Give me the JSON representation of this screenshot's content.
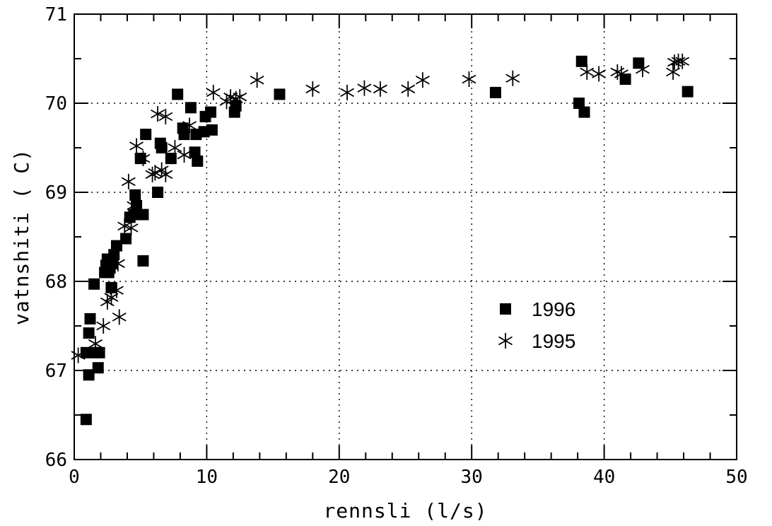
{
  "chart_data": {
    "type": "scatter",
    "title": "",
    "xlabel": "rennsli (l/s)",
    "ylabel": "vatnshiti ( C)",
    "xlim": [
      0,
      50
    ],
    "ylim": [
      66,
      71
    ],
    "x_ticks": [
      0,
      10,
      20,
      30,
      40,
      50
    ],
    "y_ticks": [
      66,
      67,
      68,
      69,
      70,
      71
    ],
    "grid": true,
    "legend_position": "center-right",
    "series": [
      {
        "name": "1996",
        "marker": "square",
        "color": "#000000",
        "points": [
          [
            0.9,
            66.45
          ],
          [
            0.9,
            67.2
          ],
          [
            1.1,
            66.95
          ],
          [
            1.1,
            67.42
          ],
          [
            1.2,
            67.58
          ],
          [
            1.5,
            67.2
          ],
          [
            1.5,
            67.97
          ],
          [
            1.8,
            67.03
          ],
          [
            1.9,
            67.2
          ],
          [
            2.3,
            68.1
          ],
          [
            2.4,
            68.18
          ],
          [
            2.5,
            68.25
          ],
          [
            2.6,
            68.1
          ],
          [
            2.7,
            68.15
          ],
          [
            2.8,
            67.93
          ],
          [
            2.9,
            68.2
          ],
          [
            3.0,
            68.3
          ],
          [
            3.2,
            68.4
          ],
          [
            3.9,
            68.48
          ],
          [
            4.2,
            68.72
          ],
          [
            4.5,
            68.75
          ],
          [
            4.6,
            68.97
          ],
          [
            4.7,
            68.85
          ],
          [
            5.0,
            69.38
          ],
          [
            5.2,
            68.75
          ],
          [
            5.2,
            68.23
          ],
          [
            5.4,
            69.65
          ],
          [
            6.3,
            69.0
          ],
          [
            6.5,
            69.55
          ],
          [
            6.6,
            69.5
          ],
          [
            7.3,
            69.38
          ],
          [
            7.8,
            70.1
          ],
          [
            8.2,
            69.72
          ],
          [
            8.3,
            69.65
          ],
          [
            8.8,
            69.95
          ],
          [
            9.1,
            69.45
          ],
          [
            9.2,
            69.65
          ],
          [
            9.3,
            69.35
          ],
          [
            9.8,
            69.68
          ],
          [
            9.9,
            69.85
          ],
          [
            10.3,
            69.9
          ],
          [
            10.4,
            69.7
          ],
          [
            12.1,
            69.9
          ],
          [
            12.2,
            69.97
          ],
          [
            15.5,
            70.1
          ],
          [
            31.8,
            70.12
          ],
          [
            38.1,
            70.0
          ],
          [
            38.3,
            70.47
          ],
          [
            38.5,
            69.9
          ],
          [
            41.6,
            70.27
          ],
          [
            42.6,
            70.45
          ],
          [
            46.3,
            70.13
          ]
        ]
      },
      {
        "name": "1995",
        "marker": "asterisk",
        "color": "#000000",
        "points": [
          [
            0.3,
            67.17
          ],
          [
            1.6,
            67.3
          ],
          [
            2.2,
            67.5
          ],
          [
            2.5,
            67.77
          ],
          [
            2.8,
            67.82
          ],
          [
            3.2,
            67.9
          ],
          [
            3.3,
            68.2
          ],
          [
            3.4,
            67.6
          ],
          [
            3.8,
            68.62
          ],
          [
            4.1,
            69.12
          ],
          [
            4.3,
            68.6
          ],
          [
            4.5,
            68.85
          ],
          [
            4.7,
            69.52
          ],
          [
            5.2,
            69.38
          ],
          [
            5.9,
            69.2
          ],
          [
            6.1,
            69.22
          ],
          [
            6.3,
            69.88
          ],
          [
            6.6,
            69.25
          ],
          [
            6.9,
            69.2
          ],
          [
            6.9,
            69.85
          ],
          [
            7.6,
            69.5
          ],
          [
            8.3,
            69.42
          ],
          [
            8.7,
            69.75
          ],
          [
            10.5,
            70.12
          ],
          [
            11.5,
            70.02
          ],
          [
            11.8,
            70.07
          ],
          [
            12.2,
            70.05
          ],
          [
            12.5,
            70.07
          ],
          [
            13.8,
            70.26
          ],
          [
            18.0,
            70.16
          ],
          [
            20.6,
            70.12
          ],
          [
            21.9,
            70.17
          ],
          [
            23.1,
            70.16
          ],
          [
            25.2,
            70.16
          ],
          [
            26.3,
            70.26
          ],
          [
            29.8,
            70.27
          ],
          [
            33.1,
            70.28
          ],
          [
            38.7,
            70.35
          ],
          [
            39.6,
            70.33
          ],
          [
            41.0,
            70.35
          ],
          [
            41.3,
            70.33
          ],
          [
            42.9,
            70.38
          ],
          [
            45.2,
            70.35
          ],
          [
            45.3,
            70.46
          ],
          [
            45.6,
            70.47
          ],
          [
            45.9,
            70.47
          ]
        ]
      }
    ]
  }
}
